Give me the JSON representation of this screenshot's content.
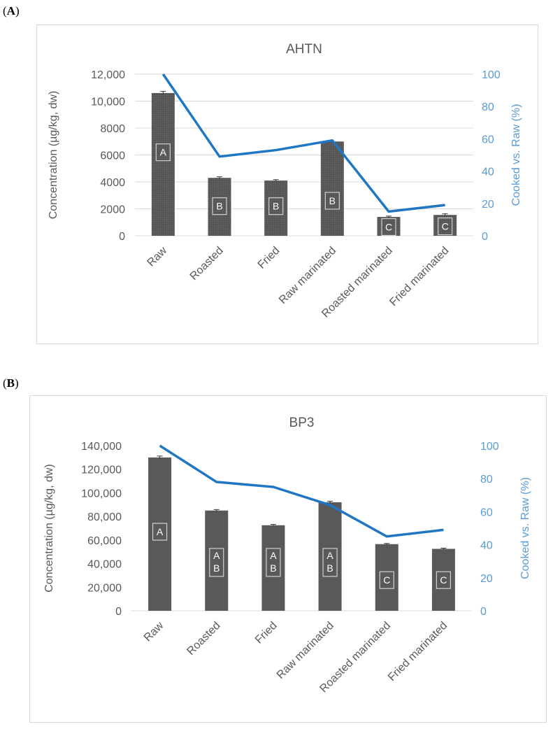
{
  "panels": [
    {
      "label_open": "(",
      "label_letter": "A",
      "label_close": ")"
    },
    {
      "label_open": "(",
      "label_letter": "B",
      "label_close": ")"
    }
  ],
  "colors": {
    "bar": "#595959",
    "bar_texture": "#4a4a4a",
    "line": "#1f77c4",
    "right_axis": "#5b9bd5",
    "text": "#595959",
    "grid": "#d9d9d9",
    "letter_box_stroke": "#d0d0d0"
  },
  "chart_data": [
    {
      "type": "bar",
      "title": "AHTN",
      "categories": [
        "Raw",
        "Roasted",
        "Fried",
        "Raw marinated",
        "Roasted marinated",
        "Fried marinated"
      ],
      "ylabel": "Concentration (µg/kg, dw)",
      "y2label": "Cooked vs. Raw (%)",
      "ylim": [
        0,
        12000
      ],
      "yticks": [
        0,
        2000,
        4000,
        6000,
        8000,
        10000,
        12000
      ],
      "ytick_labels": [
        "0",
        "2000",
        "4000",
        "6000",
        "8000",
        "10,000",
        "12,000"
      ],
      "y2lim": [
        0,
        100
      ],
      "y2ticks": [
        0,
        20,
        40,
        60,
        80,
        100
      ],
      "y2tick_labels": [
        "0",
        "20",
        "40",
        "60",
        "80",
        "100"
      ],
      "grid": true,
      "textured_bars": true,
      "series": [
        {
          "kind": "bar",
          "axis": "left",
          "values": [
            10600,
            4300,
            4100,
            7000,
            1400,
            1550
          ],
          "errors": [
            120,
            80,
            70,
            0,
            60,
            80
          ]
        },
        {
          "kind": "line",
          "axis": "right",
          "values": [
            100,
            49,
            53,
            59,
            15,
            19
          ]
        }
      ],
      "annotations": [
        {
          "lines": [
            "A"
          ],
          "center_value": 6200
        },
        {
          "lines": [
            "B"
          ],
          "center_value": 2200
        },
        {
          "lines": [
            "B"
          ],
          "center_value": 2200
        },
        {
          "lines": [
            "B"
          ],
          "center_value": 2600
        },
        {
          "lines": [
            "C"
          ],
          "center_value": 650
        },
        {
          "lines": [
            "C"
          ],
          "center_value": 700
        }
      ]
    },
    {
      "type": "bar",
      "title": "BP3",
      "categories": [
        "Raw",
        "Roasted",
        "Fried",
        "Raw marinated",
        "Roasted marinated",
        "Fried marinated"
      ],
      "ylabel": "Concentration (µg/kg, dw)",
      "y2label": "Cooked vs. Raw (%)",
      "ylim": [
        0,
        140000
      ],
      "yticks": [
        0,
        20000,
        40000,
        60000,
        80000,
        100000,
        120000,
        140000
      ],
      "ytick_labels": [
        "0",
        "20,000",
        "40,000",
        "60,000",
        "80,000",
        "100,000",
        "120,000",
        "140,000"
      ],
      "y2lim": [
        0,
        100
      ],
      "y2ticks": [
        0,
        20,
        40,
        60,
        80,
        100
      ],
      "y2tick_labels": [
        "0",
        "20",
        "40",
        "60",
        "80",
        "100"
      ],
      "grid": false,
      "textured_bars": false,
      "series": [
        {
          "kind": "bar",
          "axis": "left",
          "values": [
            130000,
            85000,
            72500,
            92000,
            56500,
            52500
          ],
          "errors": [
            1200,
            800,
            700,
            900,
            600,
            600
          ]
        },
        {
          "kind": "line",
          "axis": "right",
          "values": [
            100,
            78,
            75,
            64,
            45,
            49
          ]
        }
      ],
      "annotations": [
        {
          "lines": [
            "A"
          ],
          "center_value": 67000
        },
        {
          "lines": [
            "A",
            "B"
          ],
          "center_value": 41000
        },
        {
          "lines": [
            "A",
            "B"
          ],
          "center_value": 41000
        },
        {
          "lines": [
            "A",
            "B"
          ],
          "center_value": 41000
        },
        {
          "lines": [
            "C"
          ],
          "center_value": 26000
        },
        {
          "lines": [
            "C"
          ],
          "center_value": 26000
        }
      ]
    }
  ]
}
